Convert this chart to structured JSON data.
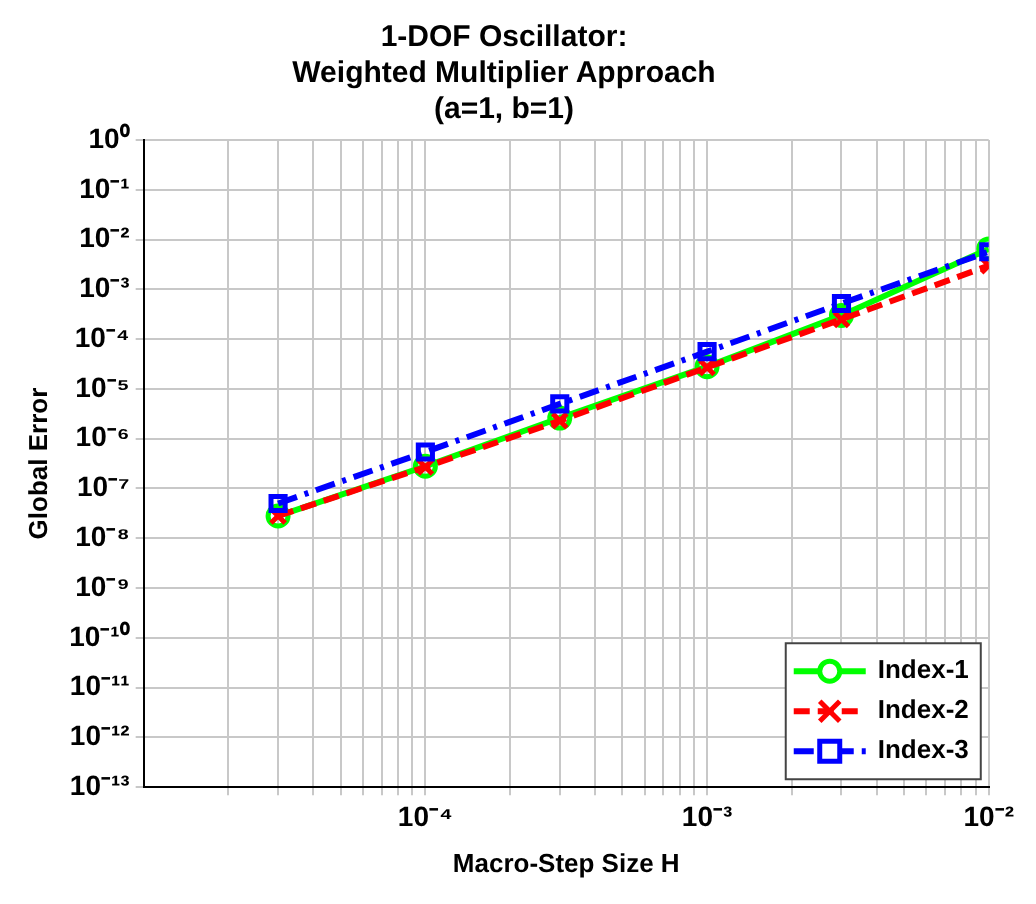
{
  "chart_data": {
    "type": "line",
    "title": "1-DOF Oscillator:\nWeighted Multiplier Approach\n(a=1, b=1)",
    "xlabel": "Macro-Step Size H",
    "ylabel": "Global Error",
    "log": "xy",
    "grid": true,
    "legend": "bottom right",
    "xlim": [
      1e-05,
      0.01
    ],
    "xticks": [
      {
        "value": 2e-05,
        "label": null
      },
      {
        "value": 3e-05,
        "label": null
      },
      {
        "value": 4e-05,
        "label": null
      },
      {
        "value": 5e-05,
        "label": null
      },
      {
        "value": 6e-05,
        "label": null
      },
      {
        "value": 7e-05,
        "label": null
      },
      {
        "value": 8e-05,
        "label": null
      },
      {
        "value": 9e-05,
        "label": null
      },
      {
        "value": 0.0001,
        "label": "10⁻⁴"
      },
      {
        "value": 0.0002,
        "label": null
      },
      {
        "value": 0.0003,
        "label": null
      },
      {
        "value": 0.0004,
        "label": null
      },
      {
        "value": 0.0005,
        "label": null
      },
      {
        "value": 0.0006,
        "label": null
      },
      {
        "value": 0.0007,
        "label": null
      },
      {
        "value": 0.0008,
        "label": null
      },
      {
        "value": 0.0009,
        "label": null
      },
      {
        "value": 0.001,
        "label": "10⁻³"
      },
      {
        "value": 0.002,
        "label": null
      },
      {
        "value": 0.003,
        "label": null
      },
      {
        "value": 0.004,
        "label": null
      },
      {
        "value": 0.005,
        "label": null
      },
      {
        "value": 0.006,
        "label": null
      },
      {
        "value": 0.007,
        "label": null
      },
      {
        "value": 0.008,
        "label": null
      },
      {
        "value": 0.009,
        "label": null
      },
      {
        "value": 0.01,
        "label": "10⁻²"
      }
    ],
    "ylim": [
      1e-13,
      1
    ],
    "yticks": [
      {
        "value": 1e-13,
        "label": "10⁻¹³"
      },
      {
        "value": 1e-12,
        "label": "10⁻¹²"
      },
      {
        "value": 1e-11,
        "label": "10⁻¹¹"
      },
      {
        "value": 1e-10,
        "label": "10⁻¹⁰"
      },
      {
        "value": 1e-09,
        "label": "10⁻⁹"
      },
      {
        "value": 1e-08,
        "label": "10⁻⁸"
      },
      {
        "value": 1e-07,
        "label": "10⁻⁷"
      },
      {
        "value": 1e-06,
        "label": "10⁻⁶"
      },
      {
        "value": 1e-05,
        "label": "10⁻⁵"
      },
      {
        "value": 0.0001,
        "label": "10⁻⁴"
      },
      {
        "value": 0.001,
        "label": "10⁻³"
      },
      {
        "value": 0.01,
        "label": "10⁻²"
      },
      {
        "value": 0.1,
        "label": "10⁻¹"
      },
      {
        "value": 1,
        "label": "10⁰"
      }
    ],
    "x": [
      3e-05,
      0.0001,
      0.0003,
      0.001,
      0.003,
      0.01
    ],
    "series": [
      {
        "name": "Index-1",
        "color": "#00ff00",
        "marker": "circle",
        "line_style": "solid",
        "values": [
          2.8e-08,
          2.8e-07,
          2.6e-06,
          2.8e-05,
          0.0003,
          0.0065
        ]
      },
      {
        "name": "Index-2",
        "color": "#ff0000",
        "marker": "cross",
        "line_style": "dashed",
        "values": [
          2.8e-08,
          2.7e-07,
          2.3e-06,
          2.7e-05,
          0.00025,
          0.003
        ]
      },
      {
        "name": "Index-3",
        "color": "#0000ff",
        "marker": "square",
        "line_style": "dashdot",
        "values": [
          5e-08,
          5.4e-07,
          5e-06,
          5.6e-05,
          0.00052,
          0.0057
        ]
      }
    ]
  }
}
